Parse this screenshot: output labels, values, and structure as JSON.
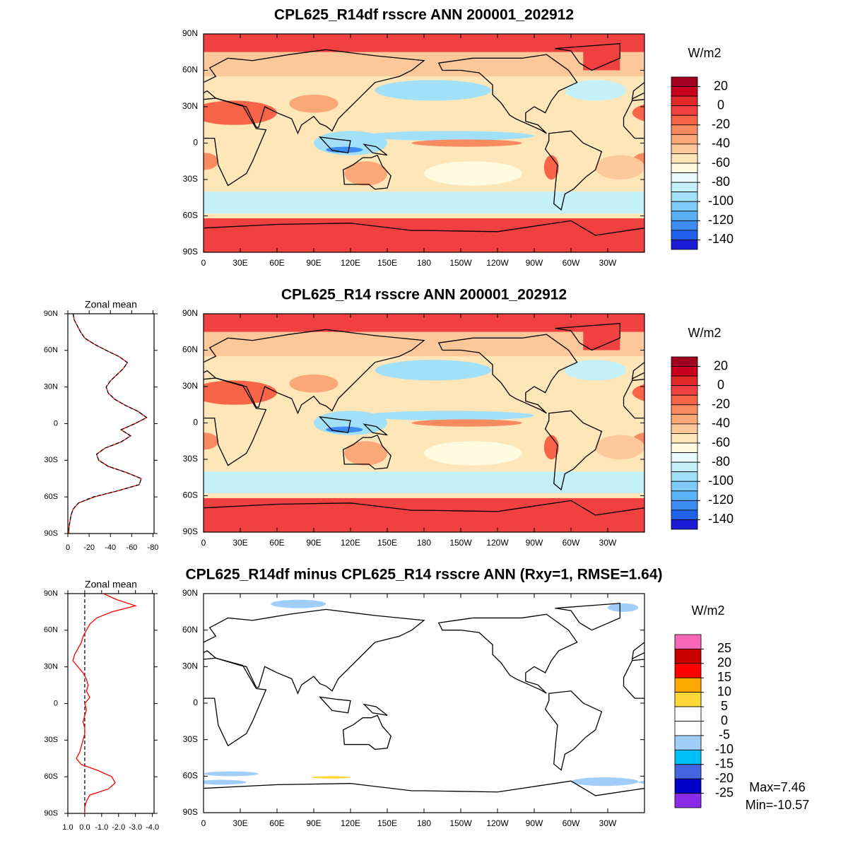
{
  "chart_data": [
    {
      "type": "map",
      "title": "CPL625_R14df rsscre ANN 200001_202912",
      "units": "W/m2",
      "xlim": [
        0,
        360
      ],
      "ylim": [
        -90,
        90
      ],
      "xticks": [
        0,
        {
          "value": 30,
          "label": "30E"
        },
        {
          "value": 60,
          "label": "60E"
        },
        {
          "value": 90,
          "label": "90E"
        },
        {
          "value": 120,
          "label": "120E"
        },
        {
          "value": 150,
          "label": "150E"
        },
        180,
        {
          "value": 210,
          "label": "150W"
        },
        {
          "value": 240,
          "label": "120W"
        },
        {
          "value": 270,
          "label": "90W"
        },
        {
          "value": 300,
          "label": "60W"
        },
        {
          "value": 330,
          "label": "30W"
        }
      ],
      "yticks": [
        {
          "value": 90,
          "label": "90N"
        },
        {
          "value": 60,
          "label": "60N"
        },
        {
          "value": 30,
          "label": "30N"
        },
        0,
        {
          "value": -30,
          "label": "30S"
        },
        {
          "value": -60,
          "label": "60S"
        },
        {
          "value": -90,
          "label": "90S"
        }
      ],
      "clim": [
        -150,
        30
      ],
      "cticks": [
        20,
        0,
        -20,
        -40,
        -60,
        -80,
        -100,
        -120,
        -140
      ],
      "colors": [
        "#a0001e",
        "#c8001e",
        "#e02828",
        "#f04040",
        "#f86448",
        "#f88a60",
        "#faa878",
        "#fcc89a",
        "#fee6b8",
        "#fffbe0",
        "#e8fafc",
        "#c4f0fa",
        "#a2e0f8",
        "#80cbf8",
        "#5ab2f6",
        "#3c8cf2",
        "#2060ea",
        "#1c1cd8"
      ]
    },
    {
      "type": "line",
      "title": "Zonal mean",
      "xlim": [
        0,
        -81
      ],
      "ylim": [
        -90,
        90
      ],
      "xticks": [
        0,
        -20,
        -40,
        -60,
        -80
      ],
      "yticks": [
        {
          "value": 90,
          "label": "90N"
        },
        {
          "value": 60,
          "label": "60N"
        },
        {
          "value": 30,
          "label": "30N"
        },
        0,
        {
          "value": -30,
          "label": "30S"
        },
        {
          "value": -60,
          "label": "60S"
        },
        {
          "value": -90,
          "label": "90S"
        }
      ],
      "y": [
        90,
        85,
        80,
        75,
        70,
        65,
        60,
        55,
        50,
        45,
        40,
        35,
        30,
        25,
        20,
        15,
        10,
        5,
        0,
        -5,
        -10,
        -15,
        -20,
        -25,
        -30,
        -35,
        -40,
        -45,
        -50,
        -55,
        -60,
        -65,
        -70,
        -75,
        -80,
        -85,
        -90
      ],
      "series": [
        {
          "color": "#ff0000",
          "style": "solid",
          "values": [
            -5,
            -6,
            -9,
            -12,
            -16,
            -25,
            -36,
            -48,
            -56,
            -52,
            -46,
            -40,
            -36,
            -38,
            -44,
            -54,
            -66,
            -74,
            -63,
            -50,
            -59,
            -50,
            -35,
            -27,
            -29,
            -38,
            -55,
            -69,
            -67,
            -47,
            -25,
            -10,
            -5,
            -3,
            -2,
            -1,
            -1
          ]
        },
        {
          "color": "#000000",
          "style": "dashed",
          "values": [
            -5,
            -6,
            -9,
            -12,
            -16,
            -25,
            -36,
            -48,
            -56,
            -52,
            -46,
            -40,
            -36,
            -38,
            -44,
            -54,
            -66,
            -74,
            -63,
            -50,
            -59,
            -50,
            -35,
            -27,
            -29,
            -38,
            -55,
            -69,
            -67,
            -47,
            -24,
            -10,
            -5,
            -3,
            -2,
            -1,
            -1
          ]
        }
      ]
    },
    {
      "type": "map",
      "title": "CPL625_R14 rsscre ANN 200001_202912",
      "units": "W/m2",
      "xlim": [
        0,
        360
      ],
      "ylim": [
        -90,
        90
      ],
      "xticks": [
        0,
        {
          "value": 30,
          "label": "30E"
        },
        {
          "value": 60,
          "label": "60E"
        },
        {
          "value": 90,
          "label": "90E"
        },
        {
          "value": 120,
          "label": "120E"
        },
        {
          "value": 150,
          "label": "150E"
        },
        180,
        {
          "value": 210,
          "label": "150W"
        },
        {
          "value": 240,
          "label": "120W"
        },
        {
          "value": 270,
          "label": "90W"
        },
        {
          "value": 300,
          "label": "60W"
        },
        {
          "value": 330,
          "label": "30W"
        }
      ],
      "yticks": [
        {
          "value": 90,
          "label": "90N"
        },
        {
          "value": 60,
          "label": "60N"
        },
        {
          "value": 30,
          "label": "30N"
        },
        0,
        {
          "value": -30,
          "label": "30S"
        },
        {
          "value": -60,
          "label": "60S"
        },
        {
          "value": -90,
          "label": "90S"
        }
      ],
      "clim": [
        -150,
        30
      ],
      "cticks": [
        20,
        0,
        -20,
        -40,
        -60,
        -80,
        -100,
        -120,
        -140
      ],
      "colors": [
        "#a0001e",
        "#c8001e",
        "#e02828",
        "#f04040",
        "#f86448",
        "#f88a60",
        "#faa878",
        "#fcc89a",
        "#fee6b8",
        "#fffbe0",
        "#e8fafc",
        "#c4f0fa",
        "#a2e0f8",
        "#80cbf8",
        "#5ab2f6",
        "#3c8cf2",
        "#2060ea",
        "#1c1cd8"
      ]
    },
    {
      "type": "line",
      "title": "Zonal mean",
      "xlim": [
        1,
        -4.1
      ],
      "ylim": [
        -90,
        90
      ],
      "xticks": [
        {
          "value": 1,
          "label": "1.0"
        },
        {
          "value": 0,
          "label": "0.0"
        },
        {
          "value": -1,
          "label": "-1.0"
        },
        {
          "value": -2,
          "label": "-2.0"
        },
        {
          "value": -3,
          "label": "-3.0"
        },
        {
          "value": -4,
          "label": "-4.0"
        }
      ],
      "yticks": [
        {
          "value": 90,
          "label": "90N"
        },
        {
          "value": 60,
          "label": "60N"
        },
        {
          "value": 30,
          "label": "30N"
        },
        0,
        {
          "value": -30,
          "label": "30S"
        },
        {
          "value": -60,
          "label": "60S"
        },
        {
          "value": -90,
          "label": "90S"
        }
      ],
      "reference_line": 0,
      "y": [
        90,
        85,
        80,
        75,
        70,
        65,
        60,
        55,
        50,
        45,
        40,
        35,
        30,
        25,
        20,
        15,
        10,
        5,
        0,
        -5,
        -10,
        -15,
        -20,
        -25,
        -30,
        -35,
        -40,
        -45,
        -50,
        -55,
        -60,
        -65,
        -70,
        -75,
        -80,
        -85,
        -90
      ],
      "series": [
        {
          "color": "#ff0000",
          "style": "solid",
          "values": [
            -1.1,
            -1.9,
            -3.0,
            -1.6,
            -0.7,
            -0.3,
            -0.1,
            0.1,
            0.2,
            0.4,
            0.6,
            0.7,
            0.4,
            0.1,
            -0.1,
            -0.2,
            -0.1,
            -0.3,
            0.0,
            -0.1,
            0.0,
            0.1,
            0.0,
            0.0,
            0.1,
            0.2,
            0.3,
            0.5,
            0.2,
            -0.8,
            -1.6,
            -1.8,
            -1.4,
            -0.3,
            -0.1,
            0.0,
            0.0
          ]
        }
      ]
    },
    {
      "type": "map",
      "title": "CPL625_R14df minus CPL625_R14 rsscre ANN (Rxy=1, RMSE=1.64)",
      "units": "W/m2",
      "xlim": [
        0,
        360
      ],
      "ylim": [
        -90,
        90
      ],
      "xticks": [
        0,
        {
          "value": 30,
          "label": "30E"
        },
        {
          "value": 60,
          "label": "60E"
        },
        {
          "value": 90,
          "label": "90E"
        },
        {
          "value": 120,
          "label": "120E"
        },
        {
          "value": 150,
          "label": "150E"
        },
        180,
        {
          "value": 210,
          "label": "150W"
        },
        {
          "value": 240,
          "label": "120W"
        },
        {
          "value": 270,
          "label": "90W"
        },
        {
          "value": 300,
          "label": "60W"
        },
        {
          "value": 330,
          "label": "30W"
        }
      ],
      "yticks": [
        {
          "value": 90,
          "label": "90N"
        },
        {
          "value": 60,
          "label": "60N"
        },
        {
          "value": 30,
          "label": "30N"
        },
        0,
        {
          "value": -30,
          "label": "30S"
        },
        {
          "value": -60,
          "label": "60S"
        },
        {
          "value": -90,
          "label": "90S"
        }
      ],
      "clim": [
        -30,
        30
      ],
      "cticks": [
        25,
        20,
        15,
        10,
        5,
        0,
        -5,
        -10,
        -15,
        -20,
        -25
      ],
      "colors": [
        "#f868b8",
        "#c80000",
        "#ff0000",
        "#ffa800",
        "#ffd838",
        "#ffffff",
        "#ffffff",
        "#a0cef8",
        "#00c0f8",
        "#4464e0",
        "#0000c8",
        "#8a2be8"
      ],
      "annotations": [
        "Max=7.46",
        "Min=-10.57"
      ]
    }
  ]
}
